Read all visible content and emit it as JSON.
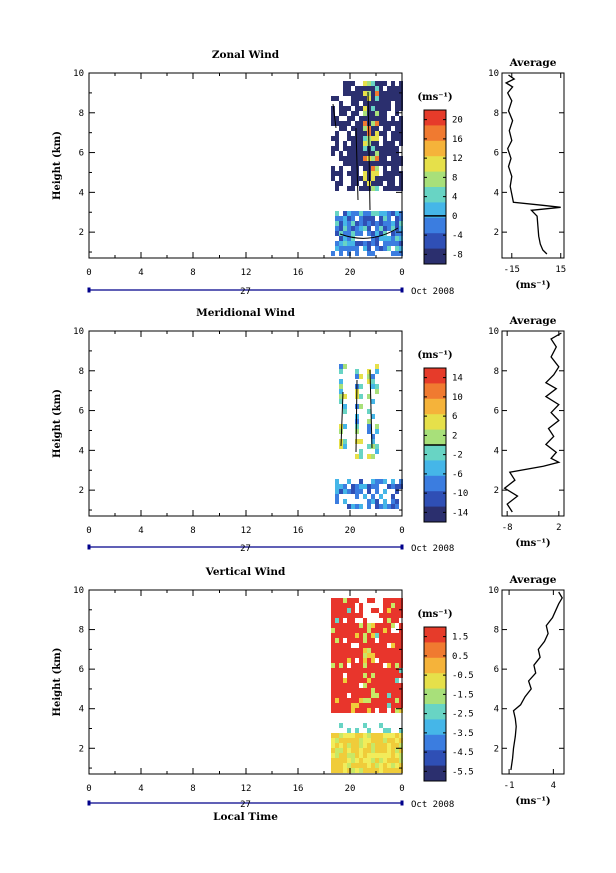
{
  "chart_data": [
    {
      "type": "heatmap",
      "title": "Zonal Wind",
      "ylabel": "Height (km)",
      "ylim": [
        0.7,
        10
      ],
      "y_ticks": [
        "2",
        "4",
        "6",
        "8",
        "10"
      ],
      "x_ticks": [
        "0",
        "4",
        "8",
        "12",
        "16",
        "20",
        "0"
      ],
      "date_day": "27",
      "date_month": "Oct 2008",
      "colorbar": {
        "unit": "(ms⁻¹)",
        "ticks": [
          "20",
          "16",
          "12",
          "8",
          "4",
          "0",
          "-4",
          "-8"
        ],
        "range": [
          -10,
          22
        ],
        "contour_level": "0"
      },
      "average": {
        "title": "Average",
        "xlabel": "(ms⁻¹)",
        "x_ticks": [
          "-15",
          "15"
        ],
        "xlim": [
          -21,
          17
        ],
        "y_ticks": [
          "2",
          "4",
          "6",
          "8",
          "10"
        ],
        "profile": [
          [
            0.9,
            6.5
          ],
          [
            1.1,
            4.0
          ],
          [
            1.4,
            2.5
          ],
          [
            1.8,
            1.5
          ],
          [
            2.3,
            1.0
          ],
          [
            2.8,
            0.5
          ],
          [
            3.1,
            -3.0
          ],
          [
            3.25,
            15.0
          ],
          [
            3.35,
            4.0
          ],
          [
            3.5,
            -14.0
          ],
          [
            3.9,
            -15.0
          ],
          [
            4.3,
            -16.0
          ],
          [
            4.8,
            -15.0
          ],
          [
            5.3,
            -17.0
          ],
          [
            5.7,
            -15.5
          ],
          [
            6.2,
            -17.5
          ],
          [
            6.6,
            -15.0
          ],
          [
            7.1,
            -16.5
          ],
          [
            7.6,
            -14.5
          ],
          [
            8.1,
            -17.0
          ],
          [
            8.6,
            -15.0
          ],
          [
            9.0,
            -17.5
          ],
          [
            9.3,
            -14.5
          ],
          [
            9.5,
            -18.5
          ],
          [
            9.7,
            -13.5
          ],
          [
            9.9,
            -17.0
          ]
        ]
      }
    },
    {
      "type": "heatmap",
      "title": "Meridional Wind",
      "ylabel": "Height (km)",
      "ylim": [
        0.7,
        10
      ],
      "y_ticks": [
        "2",
        "4",
        "6",
        "8",
        "10"
      ],
      "x_ticks": [
        "0",
        "4",
        "8",
        "12",
        "16",
        "20",
        "0"
      ],
      "date_day": "27",
      "date_month": "Oct 2008",
      "colorbar": {
        "unit": "(ms⁻¹)",
        "ticks": [
          "14",
          "10",
          "6",
          "2",
          "-2",
          "-6",
          "-10",
          "-14"
        ],
        "range": [
          -16,
          16
        ],
        "contour_level": "0"
      },
      "average": {
        "title": "Average",
        "xlabel": "(ms⁻¹)",
        "x_ticks": [
          "-8",
          "2"
        ],
        "xlim": [
          -9,
          3
        ],
        "y_ticks": [
          "2",
          "4",
          "6",
          "8",
          "10"
        ],
        "profile": [
          [
            0.9,
            -7.0
          ],
          [
            1.3,
            -8.0
          ],
          [
            1.7,
            -6.0
          ],
          [
            2.1,
            -8.5
          ],
          [
            2.5,
            -6.5
          ],
          [
            2.9,
            -7.5
          ],
          [
            3.2,
            -1.0
          ],
          [
            3.4,
            2.0
          ],
          [
            3.6,
            0.5
          ],
          [
            3.9,
            1.5
          ],
          [
            4.3,
            -0.5
          ],
          [
            4.7,
            1.0
          ],
          [
            5.1,
            0.0
          ],
          [
            5.5,
            2.0
          ],
          [
            5.9,
            0.5
          ],
          [
            6.3,
            2.0
          ],
          [
            6.7,
            -0.5
          ],
          [
            7.1,
            1.5
          ],
          [
            7.4,
            -0.5
          ],
          [
            7.8,
            1.0
          ],
          [
            8.2,
            2.0
          ],
          [
            8.7,
            0.5
          ],
          [
            9.2,
            1.5
          ],
          [
            9.6,
            0.5
          ],
          [
            9.9,
            2.5
          ]
        ]
      }
    },
    {
      "type": "heatmap",
      "title": "Vertical Wind",
      "ylabel": "Height (km)",
      "xlabel": "Local Time",
      "ylim": [
        0.7,
        10
      ],
      "y_ticks": [
        "2",
        "4",
        "6",
        "8",
        "10"
      ],
      "x_ticks": [
        "0",
        "4",
        "8",
        "12",
        "16",
        "20",
        "0"
      ],
      "date_day": "27",
      "date_month": "Oct 2008",
      "colorbar": {
        "unit": "(ms⁻¹)",
        "ticks": [
          "1.5",
          "0.5",
          "-0.5",
          "-1.5",
          "-2.5",
          "-3.5",
          "-4.5",
          "-5.5"
        ],
        "range": [
          -6,
          2
        ],
        "contour_level": ""
      },
      "average": {
        "title": "Average",
        "xlabel": "(ms⁻¹)",
        "x_ticks": [
          "-1",
          "4"
        ],
        "xlim": [
          -1.8,
          5.2
        ],
        "y_ticks": [
          "2",
          "4",
          "6",
          "8",
          "10"
        ],
        "profile": [
          [
            0.9,
            -0.8
          ],
          [
            1.5,
            -0.6
          ],
          [
            2.0,
            -0.5
          ],
          [
            2.6,
            -0.3
          ],
          [
            3.1,
            -0.2
          ],
          [
            3.5,
            -0.3
          ],
          [
            3.9,
            -0.5
          ],
          [
            4.2,
            0.3
          ],
          [
            4.6,
            0.8
          ],
          [
            5.0,
            1.5
          ],
          [
            5.4,
            1.2
          ],
          [
            5.8,
            2.0
          ],
          [
            6.2,
            1.8
          ],
          [
            6.6,
            2.5
          ],
          [
            7.0,
            2.3
          ],
          [
            7.4,
            3.0
          ],
          [
            7.8,
            3.4
          ],
          [
            8.2,
            3.2
          ],
          [
            8.6,
            3.9
          ],
          [
            9.0,
            4.3
          ],
          [
            9.3,
            4.6
          ],
          [
            9.6,
            5.0
          ],
          [
            9.9,
            4.6
          ]
        ]
      }
    }
  ]
}
